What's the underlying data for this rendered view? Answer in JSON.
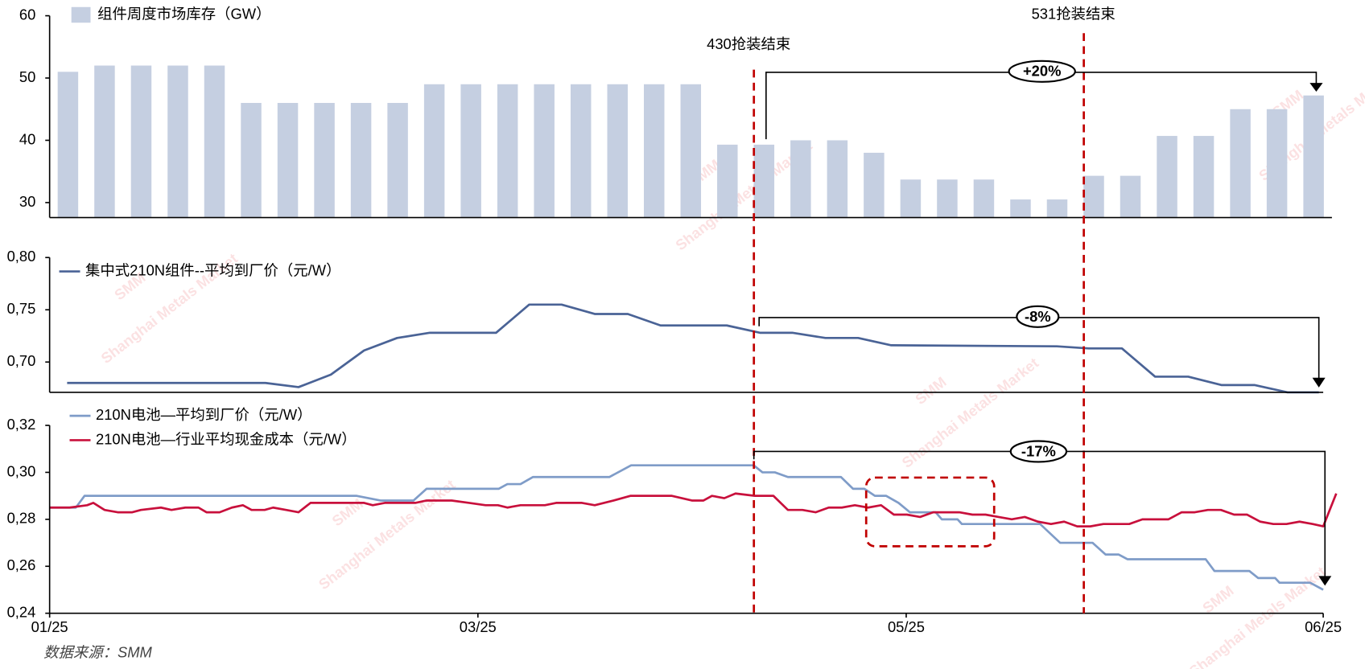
{
  "chart_data": [
    {
      "type": "bar",
      "series": [
        {
          "name": "组件周度市场库存（GW）",
          "color": "#c5cfe1",
          "values": [
            51,
            52,
            52,
            52,
            52,
            46,
            46,
            46,
            46,
            46,
            49,
            49,
            49,
            49,
            49,
            49,
            49,
            49,
            39.3,
            39.3,
            40,
            40,
            38,
            33.7,
            33.7,
            33.7,
            30.5,
            30.5,
            34.3,
            34.3,
            40.7,
            40.7,
            45,
            45,
            47.2
          ]
        }
      ],
      "ylim": [
        27.6,
        60
      ],
      "yticks": [
        30,
        40,
        50,
        60
      ]
    },
    {
      "type": "line",
      "series": [
        {
          "name": "集中式210N组件--平均到厂价（元/W）",
          "color": "#4a6396",
          "x": [
            0.48,
            5.93,
            6.84,
            7.73,
            8.64,
            9.55,
            10.45,
            12.27,
            13.18,
            14.07,
            14.98,
            15.89,
            16.79,
            18.61,
            19.52,
            20.41,
            21.32,
            22.22,
            23.13,
            27.68,
            28.56,
            29.47,
            30.38,
            31.29,
            32.2,
            33.11,
            34.02,
            34.88
          ],
          "values": [
            0.68,
            0.68,
            0.676,
            0.688,
            0.711,
            0.723,
            0.728,
            0.728,
            0.755,
            0.755,
            0.746,
            0.746,
            0.735,
            0.735,
            0.728,
            0.728,
            0.723,
            0.723,
            0.716,
            0.715,
            0.713,
            0.713,
            0.686,
            0.686,
            0.678,
            0.678,
            0.671,
            0.671
          ]
        }
      ],
      "xlim": [
        0,
        35
      ],
      "ylim": [
        0.671,
        0.8
      ],
      "yticks": [
        {
          "value": 0.7,
          "label": "0,70"
        },
        {
          "value": 0.75,
          "label": "0,75"
        },
        {
          "value": 0.8,
          "label": "0,80"
        }
      ]
    },
    {
      "type": "line",
      "series": [
        {
          "name": "210N电池—平均到厂价（元/W）",
          "color": "#7f9cc8",
          "x": [
            0,
            0.72,
            0.96,
            8.44,
            9.09,
            10,
            10.36,
            12.34,
            12.58,
            12.94,
            13.28,
            15.38,
            15.98,
            19.35,
            19.59,
            19.93,
            20.29,
            21.75,
            22.08,
            22.39,
            22.68,
            22.99,
            23.33,
            23.64,
            24.35,
            24.52,
            24.95,
            25.07,
            27.22,
            27.77,
            28.66,
            29.02,
            29.38,
            29.62,
            31.77,
            32.01,
            32.97,
            33.21,
            33.68,
            33.8,
            34.64,
            35
          ],
          "values": [
            0.285,
            0.285,
            0.29,
            0.29,
            0.288,
            0.288,
            0.293,
            0.293,
            0.295,
            0.295,
            0.298,
            0.298,
            0.303,
            0.303,
            0.3,
            0.3,
            0.298,
            0.298,
            0.293,
            0.293,
            0.29,
            0.29,
            0.287,
            0.283,
            0.283,
            0.28,
            0.28,
            0.278,
            0.278,
            0.27,
            0.27,
            0.265,
            0.265,
            0.263,
            0.263,
            0.258,
            0.258,
            0.255,
            0.255,
            0.253,
            0.253,
            0.25
          ]
        },
        {
          "name": "210N电池—行业平均现金成本（元/W）",
          "color": "#c8103c",
          "x": [
            0,
            0.55,
            1.03,
            1.2,
            1.51,
            1.87,
            2.27,
            2.51,
            3.06,
            3.35,
            3.73,
            4.09,
            4.31,
            4.67,
            5.01,
            5.31,
            5.55,
            5.91,
            6.14,
            6.5,
            6.84,
            7.17,
            8.64,
            8.88,
            9.21,
            10.05,
            10.36,
            11.05,
            11.53,
            11.98,
            12.32,
            12.58,
            12.94,
            13.61,
            13.92,
            14.63,
            14.98,
            15.5,
            15.96,
            17.1,
            17.65,
            17.97,
            18.2,
            18.54,
            18.85,
            19.38,
            19.89,
            20.29,
            20.69,
            21.05,
            21.41,
            21.77,
            22.13,
            22.49,
            22.85,
            23.2,
            23.56,
            23.92,
            24.28,
            25,
            25.36,
            25.72,
            26.08,
            26.44,
            26.8,
            27.16,
            27.52,
            27.88,
            28.24,
            28.6,
            28.96,
            29.67,
            30.03,
            30.75,
            31.11,
            31.47,
            31.83,
            32.19,
            32.55,
            32.91,
            33.27,
            33.63,
            33.99,
            34.35,
            34.71,
            35,
            35.36
          ],
          "values": [
            0.285,
            0.285,
            0.286,
            0.287,
            0.284,
            0.283,
            0.283,
            0.284,
            0.285,
            0.284,
            0.285,
            0.285,
            0.283,
            0.283,
            0.285,
            0.286,
            0.284,
            0.284,
            0.285,
            0.284,
            0.283,
            0.287,
            0.287,
            0.286,
            0.287,
            0.287,
            0.288,
            0.288,
            0.287,
            0.286,
            0.286,
            0.285,
            0.286,
            0.286,
            0.287,
            0.287,
            0.286,
            0.288,
            0.29,
            0.29,
            0.288,
            0.288,
            0.29,
            0.289,
            0.291,
            0.29,
            0.29,
            0.284,
            0.284,
            0.283,
            0.285,
            0.285,
            0.286,
            0.285,
            0.286,
            0.282,
            0.282,
            0.281,
            0.283,
            0.283,
            0.282,
            0.282,
            0.281,
            0.28,
            0.281,
            0.279,
            0.278,
            0.279,
            0.277,
            0.277,
            0.278,
            0.278,
            0.28,
            0.28,
            0.283,
            0.283,
            0.284,
            0.284,
            0.282,
            0.282,
            0.279,
            0.278,
            0.278,
            0.279,
            0.278,
            0.277,
            0.291
          ]
        }
      ],
      "xlim": [
        0,
        35
      ],
      "ylim": [
        0.24,
        0.32
      ],
      "yticks": [
        {
          "value": 0.24,
          "label": "0,24"
        },
        {
          "value": 0.26,
          "label": "0,26"
        },
        {
          "value": 0.28,
          "label": "0,28"
        },
        {
          "value": 0.3,
          "label": "0,30"
        },
        {
          "value": 0.32,
          "label": "0,32"
        }
      ],
      "xticks": [
        {
          "value": 0,
          "label": "01/25"
        },
        {
          "value": 11.77,
          "label": "03/25"
        },
        {
          "value": 23.54,
          "label": "05/25"
        },
        {
          "value": 35,
          "label": "06/25"
        }
      ]
    }
  ],
  "annotations": {
    "event_430": "430抢装结束",
    "event_531": "531抢装结束",
    "inventory_change": "+20%",
    "module_change": "-8%",
    "cell_change": "-17%"
  },
  "watermark": {
    "logo": "SMM",
    "text": "Shanghai Metals Market"
  },
  "source": "数据来源：SMM"
}
